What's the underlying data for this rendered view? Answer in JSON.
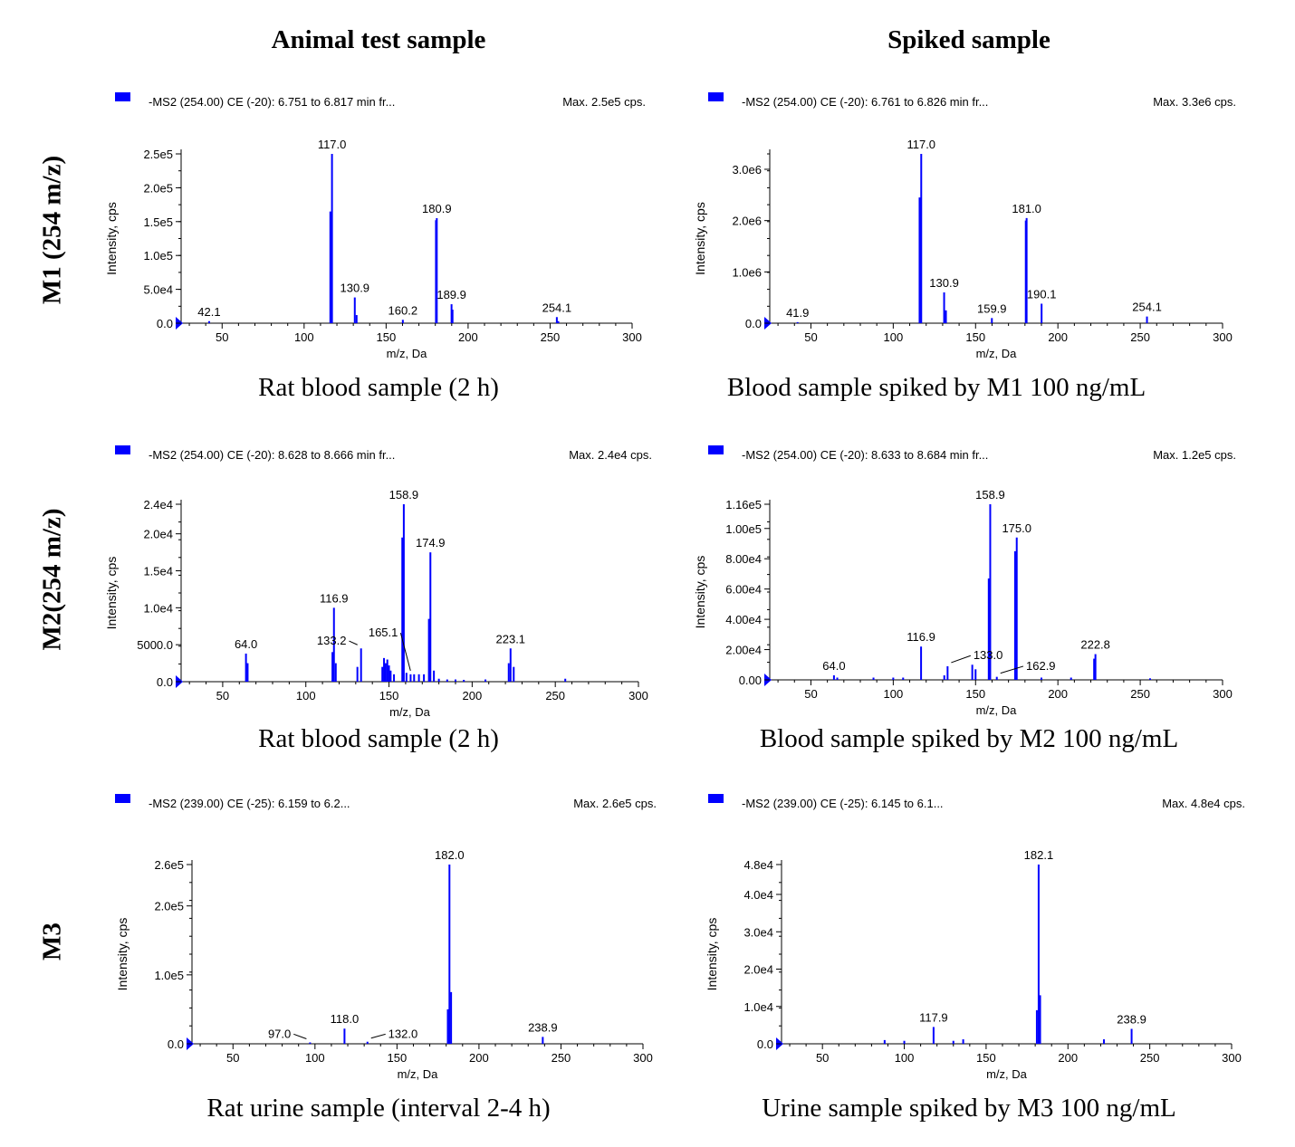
{
  "columns": [
    "Animal test sample",
    "Spiked sample"
  ],
  "rows": [
    "M1 (254 m/z)",
    "M2(254 m/z)",
    "M3"
  ],
  "ylabel": "Intensity, cps",
  "xlabel": "m/z, Da",
  "colors": {
    "peak": "#0000ff",
    "axis": "#000000",
    "marker": "#0000ff"
  },
  "chart_data": [
    {
      "type": "bar",
      "header": "-MS2 (254.00) CE (-20): 6.751 to 6.817 min fr...",
      "max_text": "Max. 2.5e5 cps.",
      "caption": "Rat blood sample (2 h)",
      "xlabel": "m/z, Da",
      "ylabel": "Intensity, cps",
      "xlim": [
        25,
        300
      ],
      "ylim": [
        0,
        250000
      ],
      "xticks": [
        50,
        100,
        150,
        200,
        250,
        300
      ],
      "yticks": [
        {
          "v": 0,
          "label": "0.0"
        },
        {
          "v": 50000,
          "label": "5.0e4"
        },
        {
          "v": 100000,
          "label": "1.0e5"
        },
        {
          "v": 150000,
          "label": "1.5e5"
        },
        {
          "v": 200000,
          "label": "2.0e5"
        },
        {
          "v": 250000,
          "label": "2.5e5"
        }
      ],
      "peaks": [
        [
          42.1,
          3000
        ],
        [
          116.0,
          165000
        ],
        [
          117.0,
          250000
        ],
        [
          130.9,
          38000
        ],
        [
          132.0,
          12000
        ],
        [
          160.2,
          5000
        ],
        [
          180.4,
          152000
        ],
        [
          180.9,
          155000
        ],
        [
          189.9,
          28000
        ],
        [
          190.5,
          20000
        ],
        [
          254.1,
          9000
        ],
        [
          255.0,
          3000
        ]
      ],
      "labels": [
        {
          "x": 42.1,
          "y": 3000,
          "text": "42.1"
        },
        {
          "x": 117.0,
          "y": 250000,
          "text": "117.0"
        },
        {
          "x": 130.9,
          "y": 38000,
          "text": "130.9"
        },
        {
          "x": 160.2,
          "y": 5000,
          "text": "160.2"
        },
        {
          "x": 180.9,
          "y": 155000,
          "text": "180.9"
        },
        {
          "x": 189.9,
          "y": 28000,
          "text": "189.9"
        },
        {
          "x": 254.1,
          "y": 9000,
          "text": "254.1"
        }
      ]
    },
    {
      "type": "bar",
      "header": "-MS2 (254.00) CE (-20): 6.761 to 6.826 min fr...",
      "max_text": "Max. 3.3e6 cps.",
      "caption": "Blood sample spiked by M1 100 ng/mL",
      "xlabel": "m/z, Da",
      "ylabel": "Intensity, cps",
      "xlim": [
        25,
        300
      ],
      "ylim": [
        0,
        3300000
      ],
      "xticks": [
        50,
        100,
        150,
        200,
        250,
        300
      ],
      "yticks": [
        {
          "v": 0,
          "label": "0.0"
        },
        {
          "v": 1000000,
          "label": "1.0e6"
        },
        {
          "v": 2000000,
          "label": "2.0e6"
        },
        {
          "v": 3000000,
          "label": "3.0e6"
        }
      ],
      "peaks": [
        [
          41.9,
          20000
        ],
        [
          116.0,
          2450000
        ],
        [
          117.0,
          3300000
        ],
        [
          130.9,
          600000
        ],
        [
          132.0,
          250000
        ],
        [
          159.9,
          100000
        ],
        [
          180.5,
          2000000
        ],
        [
          181.0,
          2050000
        ],
        [
          190.1,
          380000
        ],
        [
          254.1,
          130000
        ]
      ],
      "labels": [
        {
          "x": 41.9,
          "y": 20000,
          "text": "41.9"
        },
        {
          "x": 117.0,
          "y": 3300000,
          "text": "117.0"
        },
        {
          "x": 130.9,
          "y": 600000,
          "text": "130.9"
        },
        {
          "x": 159.9,
          "y": 100000,
          "text": "159.9"
        },
        {
          "x": 181.0,
          "y": 2050000,
          "text": "181.0"
        },
        {
          "x": 190.1,
          "y": 380000,
          "text": "190.1"
        },
        {
          "x": 254.1,
          "y": 130000,
          "text": "254.1"
        }
      ]
    },
    {
      "type": "bar",
      "header": "-MS2 (254.00) CE (-20): 8.628 to 8.666 min fr...",
      "max_text": "Max. 2.4e4 cps.",
      "caption": "Rat blood sample (2 h)",
      "xlabel": "m/z, Da",
      "ylabel": "Intensity, cps",
      "xlim": [
        25,
        300
      ],
      "ylim": [
        0,
        24000
      ],
      "xticks": [
        50,
        100,
        150,
        200,
        250,
        300
      ],
      "yticks": [
        {
          "v": 0,
          "label": "0.0"
        },
        {
          "v": 5000,
          "label": "5000.0"
        },
        {
          "v": 10000,
          "label": "1.0e4"
        },
        {
          "v": 15000,
          "label": "1.5e4"
        },
        {
          "v": 20000,
          "label": "2.0e4"
        },
        {
          "v": 24000,
          "label": "2.4e4"
        }
      ],
      "peaks": [
        [
          64.0,
          3800
        ],
        [
          65.0,
          2500
        ],
        [
          116.0,
          4000
        ],
        [
          116.9,
          10000
        ],
        [
          118.0,
          2500
        ],
        [
          131.0,
          2000
        ],
        [
          133.2,
          4500
        ],
        [
          146.0,
          2000
        ],
        [
          147.0,
          3200
        ],
        [
          148.0,
          2500
        ],
        [
          149.0,
          3000
        ],
        [
          150.0,
          2200
        ],
        [
          151.0,
          1500
        ],
        [
          153.0,
          1000
        ],
        [
          158.0,
          19500
        ],
        [
          158.9,
          24000
        ],
        [
          160.5,
          1200
        ],
        [
          163.0,
          1000
        ],
        [
          165.1,
          1000
        ],
        [
          168.0,
          1000
        ],
        [
          171.0,
          1000
        ],
        [
          174.0,
          8500
        ],
        [
          174.9,
          17500
        ],
        [
          177.0,
          1500
        ],
        [
          180.0,
          400
        ],
        [
          185.0,
          300
        ],
        [
          190.0,
          300
        ],
        [
          195.0,
          250
        ],
        [
          208.0,
          300
        ],
        [
          222.0,
          2500
        ],
        [
          223.1,
          4500
        ],
        [
          225.0,
          2000
        ],
        [
          256.0,
          400
        ]
      ],
      "labels": [
        {
          "x": 64.0,
          "y": 3800,
          "text": "64.0"
        },
        {
          "x": 116.9,
          "y": 10000,
          "text": "116.9"
        },
        {
          "x": 158.9,
          "y": 24000,
          "text": "158.9"
        },
        {
          "x": 174.9,
          "y": 17500,
          "text": "174.9"
        },
        {
          "x": 223.1,
          "y": 4500,
          "text": "223.1"
        }
      ],
      "leader_labels": [
        {
          "x": 133.2,
          "y": 4500,
          "text": "133.2",
          "lx": 126,
          "ly": 5500
        },
        {
          "x": 165.1,
          "y": 1000,
          "text": "165.1",
          "lx": 157,
          "ly": 6600
        }
      ]
    },
    {
      "type": "bar",
      "header": "-MS2 (254.00) CE (-20): 8.633 to 8.684 min fr...",
      "max_text": "Max. 1.2e5 cps.",
      "caption": "Blood sample spiked by M2 100 ng/mL",
      "xlabel": "m/z, Da",
      "ylabel": "Intensity, cps",
      "xlim": [
        25,
        300
      ],
      "ylim": [
        0,
        116000
      ],
      "xticks": [
        50,
        100,
        150,
        200,
        250,
        300
      ],
      "yticks": [
        {
          "v": 0,
          "label": "0.00"
        },
        {
          "v": 20000,
          "label": "2.00e4"
        },
        {
          "v": 40000,
          "label": "4.00e4"
        },
        {
          "v": 60000,
          "label": "6.00e4"
        },
        {
          "v": 80000,
          "label": "8.00e4"
        },
        {
          "v": 100000,
          "label": "1.00e5"
        },
        {
          "v": 116000,
          "label": "1.16e5"
        }
      ],
      "peaks": [
        [
          64.0,
          3000
        ],
        [
          66.0,
          1500
        ],
        [
          88.0,
          1500
        ],
        [
          100.0,
          1500
        ],
        [
          106.0,
          1500
        ],
        [
          116.9,
          22000
        ],
        [
          131.0,
          3000
        ],
        [
          133.0,
          9000
        ],
        [
          148.0,
          10000
        ],
        [
          150.0,
          7000
        ],
        [
          158.0,
          67000
        ],
        [
          158.9,
          116000
        ],
        [
          162.9,
          2000
        ],
        [
          174.0,
          85000
        ],
        [
          175.0,
          94000
        ],
        [
          190.0,
          1500
        ],
        [
          208.0,
          1500
        ],
        [
          222.0,
          14000
        ],
        [
          222.8,
          17000
        ],
        [
          256.0,
          1000
        ]
      ],
      "labels": [
        {
          "x": 64.0,
          "y": 3000,
          "text": "64.0"
        },
        {
          "x": 116.9,
          "y": 22000,
          "text": "116.9"
        },
        {
          "x": 158.9,
          "y": 116000,
          "text": "158.9"
        },
        {
          "x": 175.0,
          "y": 94000,
          "text": "175.0"
        },
        {
          "x": 222.8,
          "y": 17000,
          "text": "222.8"
        }
      ],
      "leader_labels": [
        {
          "x": 133.0,
          "y": 9000,
          "text": "133.0",
          "lx": 147,
          "ly": 16000
        },
        {
          "x": 162.9,
          "y": 2000,
          "text": "162.9",
          "lx": 179,
          "ly": 9000
        }
      ]
    },
    {
      "type": "bar",
      "header": "-MS2 (239.00) CE (-25): 6.159 to 6.2...",
      "max_text": "Max. 2.6e5 cps.",
      "caption": "Rat urine sample (interval 2-4 h)",
      "xlabel": "m/z, Da",
      "ylabel": "Intensity, cps",
      "xlim": [
        25,
        300
      ],
      "ylim": [
        0,
        260000
      ],
      "xticks": [
        50,
        100,
        150,
        200,
        250,
        300
      ],
      "yticks": [
        {
          "v": 0,
          "label": "0.0"
        },
        {
          "v": 100000,
          "label": "1.0e5"
        },
        {
          "v": 200000,
          "label": "2.0e5"
        },
        {
          "v": 260000,
          "label": "2.6e5"
        }
      ],
      "peaks": [
        [
          97.0,
          2000
        ],
        [
          118.0,
          22000
        ],
        [
          132.0,
          3000
        ],
        [
          181.0,
          50000
        ],
        [
          182.0,
          260000
        ],
        [
          183.0,
          75000
        ],
        [
          238.9,
          10000
        ]
      ],
      "labels": [
        {
          "x": 118.0,
          "y": 22000,
          "text": "118.0"
        },
        {
          "x": 182.0,
          "y": 260000,
          "text": "182.0"
        },
        {
          "x": 238.9,
          "y": 10000,
          "text": "238.9"
        }
      ],
      "leader_labels": [
        {
          "x": 97.0,
          "y": 2000,
          "text": "97.0",
          "lx": 87,
          "ly": 14000
        },
        {
          "x": 132.0,
          "y": 3000,
          "text": "132.0",
          "lx": 143,
          "ly": 14000
        }
      ]
    },
    {
      "type": "bar",
      "header": "-MS2 (239.00) CE (-25): 6.145 to 6.1...",
      "max_text": "Max. 4.8e4 cps.",
      "caption": "Urine sample spiked by M3 100 ng/mL",
      "xlabel": "m/z, Da",
      "ylabel": "Intensity, cps",
      "xlim": [
        25,
        300
      ],
      "ylim": [
        0,
        48000
      ],
      "xticks": [
        50,
        100,
        150,
        200,
        250,
        300
      ],
      "yticks": [
        {
          "v": 0,
          "label": "0.0"
        },
        {
          "v": 10000,
          "label": "1.0e4"
        },
        {
          "v": 20000,
          "label": "2.0e4"
        },
        {
          "v": 30000,
          "label": "3.0e4"
        },
        {
          "v": 40000,
          "label": "4.0e4"
        },
        {
          "v": 48000,
          "label": "4.8e4"
        }
      ],
      "peaks": [
        [
          88.0,
          1000
        ],
        [
          100.0,
          800
        ],
        [
          117.9,
          4500
        ],
        [
          130.0,
          800
        ],
        [
          136.0,
          1200
        ],
        [
          181.0,
          9000
        ],
        [
          182.1,
          48000
        ],
        [
          183.0,
          13000
        ],
        [
          222.0,
          1200
        ],
        [
          238.9,
          4000
        ]
      ],
      "labels": [
        {
          "x": 117.9,
          "y": 4500,
          "text": "117.9"
        },
        {
          "x": 182.1,
          "y": 48000,
          "text": "182.1"
        },
        {
          "x": 238.9,
          "y": 4000,
          "text": "238.9"
        }
      ]
    }
  ]
}
